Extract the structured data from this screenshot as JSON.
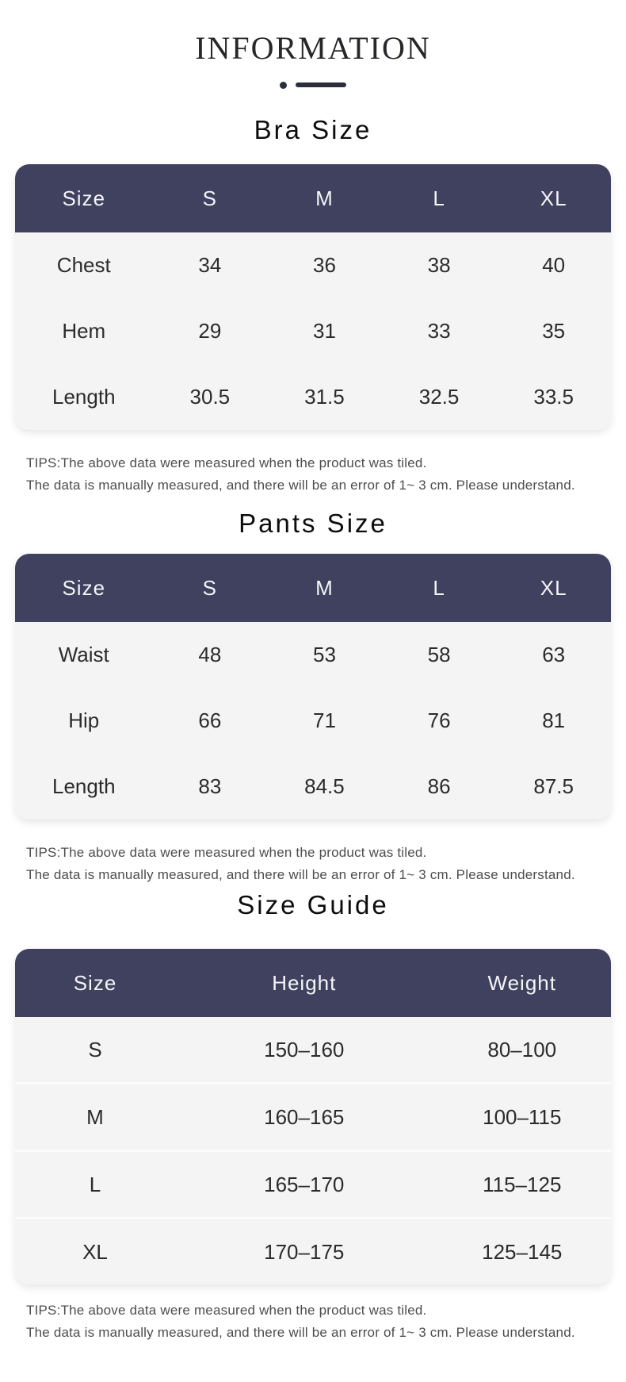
{
  "page": {
    "title": "INFORMATION"
  },
  "colors": {
    "header_bg": "#3f415e",
    "table_body_bg": "#f4f4f4",
    "row_separator": "#fbfbfb",
    "ornament": "#2c2e3a",
    "body_text": "#2b2b2b",
    "tips_text": "#4d4d4d"
  },
  "tips": {
    "line1": "TIPS:The above data were measured when the product was tiled.",
    "line2": "The data is manually measured, and there will be an error of 1~ 3 cm. Please understand."
  },
  "sections": [
    {
      "title": "Bra Size",
      "columns": [
        "Size",
        "S",
        "M",
        "L",
        "XL"
      ],
      "rows": [
        [
          "Chest",
          "34",
          "36",
          "38",
          "40"
        ],
        [
          "Hem",
          "29",
          "31",
          "33",
          "35"
        ],
        [
          "Length",
          "30.5",
          "31.5",
          "32.5",
          "33.5"
        ]
      ]
    },
    {
      "title": "Pants Size",
      "columns": [
        "Size",
        "S",
        "M",
        "L",
        "XL"
      ],
      "rows": [
        [
          "Waist",
          "48",
          "53",
          "58",
          "63"
        ],
        [
          "Hip",
          "66",
          "71",
          "76",
          "81"
        ],
        [
          "Length",
          "83",
          "84.5",
          "86",
          "87.5"
        ]
      ]
    },
    {
      "title": "Size Guide",
      "columns": [
        "Size",
        "Height",
        "Weight"
      ],
      "rows": [
        [
          "S",
          "150–160",
          "80–100"
        ],
        [
          "M",
          "160–165",
          "100–115"
        ],
        [
          "L",
          "165–170",
          "115–125"
        ],
        [
          "XL",
          "170–175",
          "125–145"
        ]
      ]
    }
  ]
}
